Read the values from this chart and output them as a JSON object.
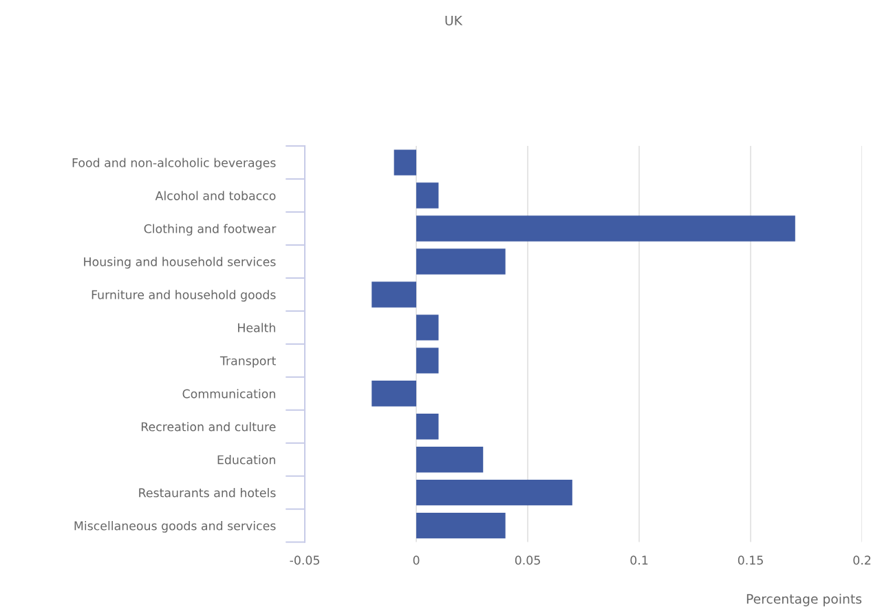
{
  "chart_data": {
    "type": "bar",
    "orientation": "horizontal",
    "title": "UK",
    "xlabel": "Percentage points",
    "categories": [
      "Food and non-alcoholic beverages",
      "Alcohol and tobacco",
      "Clothing and footwear",
      "Housing and household services",
      "Furniture and household goods",
      "Health",
      "Transport",
      "Communication",
      "Recreation and culture",
      "Education",
      "Restaurants and hotels",
      "Miscellaneous goods and services"
    ],
    "values": [
      -0.01,
      0.01,
      0.17,
      0.04,
      -0.02,
      0.01,
      0.01,
      -0.02,
      0.01,
      0.03,
      0.07,
      0.04
    ],
    "color": "#3a57a0",
    "xlim": [
      -0.05,
      0.2
    ],
    "xticks": [
      -0.05,
      0,
      0.05,
      0.1,
      0.15,
      0.2
    ],
    "grid": "x",
    "legend": false
  }
}
